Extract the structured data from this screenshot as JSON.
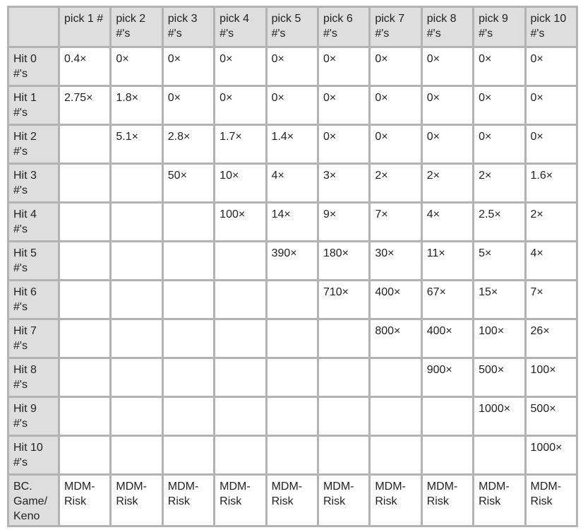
{
  "table": {
    "corner": "",
    "columns": [
      "pick 1 #",
      "pick 2 #'s",
      "pick 3 #'s",
      "pick 4 #'s",
      "pick 5 #'s",
      "pick 6 #'s",
      "pick 7 #'s",
      "pick 8 #'s",
      "pick 9 #'s",
      "pick 10 #'s"
    ],
    "rows": [
      {
        "label": "Hit 0 #'s",
        "cells": [
          "0.4×",
          "0×",
          "0×",
          "0×",
          "0×",
          "0×",
          "0×",
          "0×",
          "0×",
          "0×"
        ]
      },
      {
        "label": "Hit 1 #'s",
        "cells": [
          "2.75×",
          "1.8×",
          "0×",
          "0×",
          "0×",
          "0×",
          "0×",
          "0×",
          "0×",
          "0×"
        ]
      },
      {
        "label": "Hit 2 #'s",
        "cells": [
          "",
          "5.1×",
          "2.8×",
          "1.7×",
          "1.4×",
          "0×",
          "0×",
          "0×",
          "0×",
          "0×"
        ]
      },
      {
        "label": "Hit 3 #'s",
        "cells": [
          "",
          "",
          "50×",
          "10×",
          "4×",
          "3×",
          "2×",
          "2×",
          "2×",
          "1.6×"
        ]
      },
      {
        "label": "Hit 4 #'s",
        "cells": [
          "",
          "",
          "",
          "100×",
          "14×",
          "9×",
          "7×",
          "4×",
          "2.5×",
          "2×"
        ]
      },
      {
        "label": "Hit 5 #'s",
        "cells": [
          "",
          "",
          "",
          "",
          "390×",
          "180×",
          "30×",
          "11×",
          "5×",
          "4×"
        ]
      },
      {
        "label": "Hit 6 #'s",
        "cells": [
          "",
          "",
          "",
          "",
          "",
          "710×",
          "400×",
          "67×",
          "15×",
          "7×"
        ]
      },
      {
        "label": "Hit 7 #'s",
        "cells": [
          "",
          "",
          "",
          "",
          "",
          "",
          "800×",
          "400×",
          "100×",
          "26×"
        ]
      },
      {
        "label": "Hit 8 #'s",
        "cells": [
          "",
          "",
          "",
          "",
          "",
          "",
          "",
          "900×",
          "500×",
          "100×"
        ]
      },
      {
        "label": "Hit 9 #'s",
        "cells": [
          "",
          "",
          "",
          "",
          "",
          "",
          "",
          "",
          "1000×",
          "500×"
        ]
      },
      {
        "label": "Hit 10 #'s",
        "cells": [
          "",
          "",
          "",
          "",
          "",
          "",
          "",
          "",
          "",
          "1000×"
        ]
      },
      {
        "label": "BC. Game/ Keno",
        "cells": [
          "MDM-Risk",
          "MDM-Risk",
          "MDM-Risk",
          "MDM-Risk",
          "MDM-Risk",
          "MDM-Risk",
          "MDM-Risk",
          "MDM-Risk",
          "MDM-Risk",
          "MDM-Risk"
        ]
      }
    ]
  }
}
